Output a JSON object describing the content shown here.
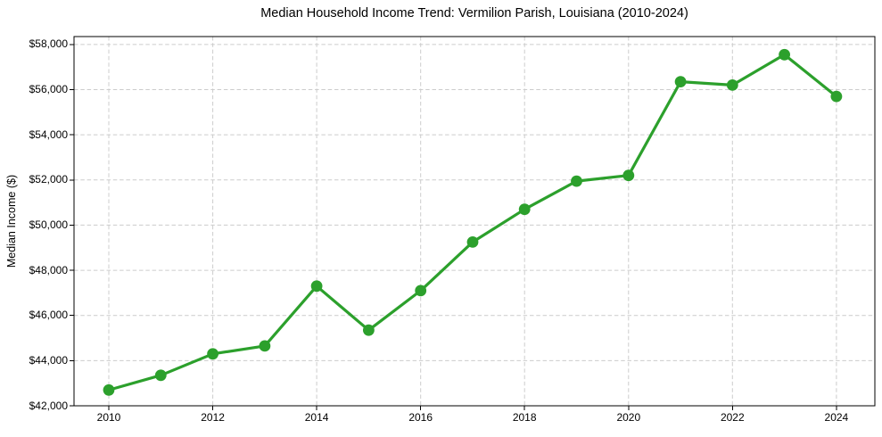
{
  "chart_data": {
    "type": "line",
    "title": "Median Household Income Trend: Vermilion Parish, Louisiana (2010-2024)",
    "xlabel": "",
    "ylabel": "Median Income ($)",
    "x": [
      2010,
      2011,
      2012,
      2013,
      2014,
      2015,
      2016,
      2017,
      2018,
      2019,
      2020,
      2021,
      2022,
      2023,
      2024
    ],
    "series": [
      {
        "name": "Median Household Income",
        "values": [
          42700,
          43350,
          44300,
          44650,
          47300,
          45350,
          47100,
          49250,
          50700,
          51950,
          52200,
          56350,
          56200,
          57550,
          55700
        ]
      }
    ],
    "xticks": [
      2010,
      2012,
      2014,
      2016,
      2018,
      2020,
      2022,
      2024
    ],
    "yticks": [
      42000,
      44000,
      46000,
      48000,
      50000,
      52000,
      54000,
      56000,
      58000
    ],
    "ytick_prefix": "$",
    "xlim": [
      2009.33,
      2024.74
    ],
    "ylim": [
      42000,
      58350
    ],
    "grid": "dashed",
    "legend_position": "none",
    "line_color": "#2ca02c",
    "marker": "circle",
    "marker_color": "#2ca02c",
    "grid_color": "#cccccc",
    "axis_color": "#000000",
    "text_color": "#000000",
    "background": "#ffffff"
  }
}
